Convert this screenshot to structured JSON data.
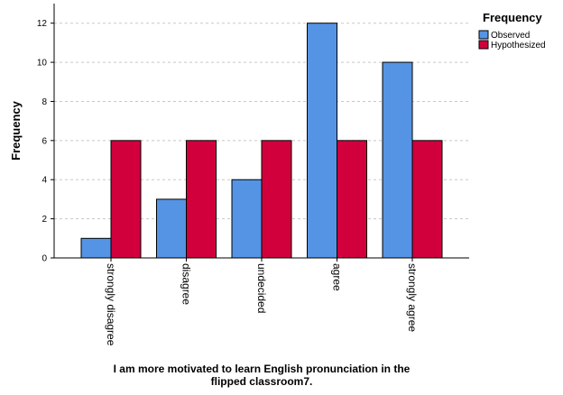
{
  "chart_data": {
    "type": "bar",
    "categories": [
      "strongly disagree",
      "disagree",
      "undecided",
      "agree",
      "strongly agree"
    ],
    "series": [
      {
        "name": "Observed",
        "values": [
          1,
          3,
          4,
          12,
          10
        ],
        "color": "#5594e4"
      },
      {
        "name": "Hypothesized",
        "values": [
          6,
          6,
          6,
          6,
          6
        ],
        "color": "#d1003d"
      }
    ],
    "ylim": [
      0,
      13
    ],
    "yticks": [
      0,
      2,
      4,
      6,
      8,
      10,
      12
    ],
    "ylabel": "Frequency",
    "xlabel_lines": [
      "I am more motivated to learn English pronunciation in the",
      "flipped classroom7."
    ],
    "legend": {
      "title": "Frequency",
      "position": "top-right"
    },
    "grid": {
      "y": true,
      "style": "dashed"
    },
    "category_label_rotation": "vertical"
  }
}
